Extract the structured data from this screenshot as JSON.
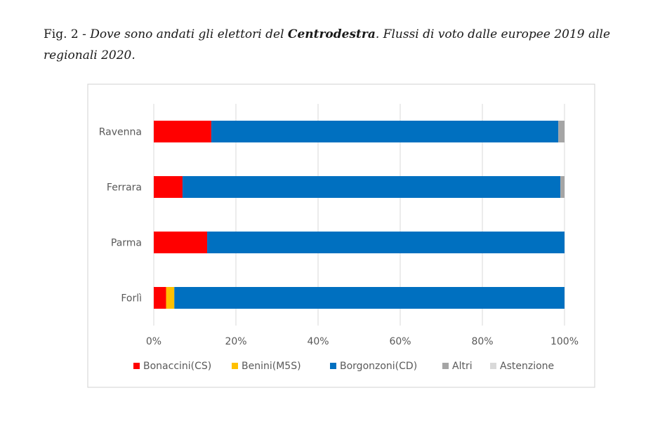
{
  "figure": {
    "caption_prefix": "Fig. 2 - ",
    "caption_italic_1": "Dove sono andati gli elettori del ",
    "caption_bold": "Centrodestra",
    "caption_italic_2": ". Flussi di voto dalle europee 2019 alle regionali 2020."
  },
  "chart_data": {
    "type": "bar",
    "orientation": "horizontal",
    "stacked": true,
    "percent": true,
    "categories": [
      "Ravenna",
      "Ferrara",
      "Parma",
      "Forlì"
    ],
    "series": [
      {
        "name": "Bonaccini(CS)",
        "color": "#ff0000",
        "values": [
          14,
          7,
          13,
          3
        ]
      },
      {
        "name": "Benini(M5S)",
        "color": "#ffc000",
        "values": [
          0,
          0,
          0,
          2
        ]
      },
      {
        "name": "Borgonzoni(CD)",
        "color": "#0070c0",
        "values": [
          84.5,
          92,
          87,
          95
        ]
      },
      {
        "name": "Altri",
        "color": "#a5a5a5",
        "values": [
          1.5,
          1,
          0,
          0
        ]
      },
      {
        "name": "Astenzione",
        "color": "#d9d9d9",
        "values": [
          0,
          0,
          0,
          0
        ]
      }
    ],
    "xlim": [
      0,
      100
    ],
    "xticks": [
      "0%",
      "20%",
      "40%",
      "60%",
      "80%",
      "100%"
    ],
    "grid": true,
    "legend_position": "bottom"
  }
}
